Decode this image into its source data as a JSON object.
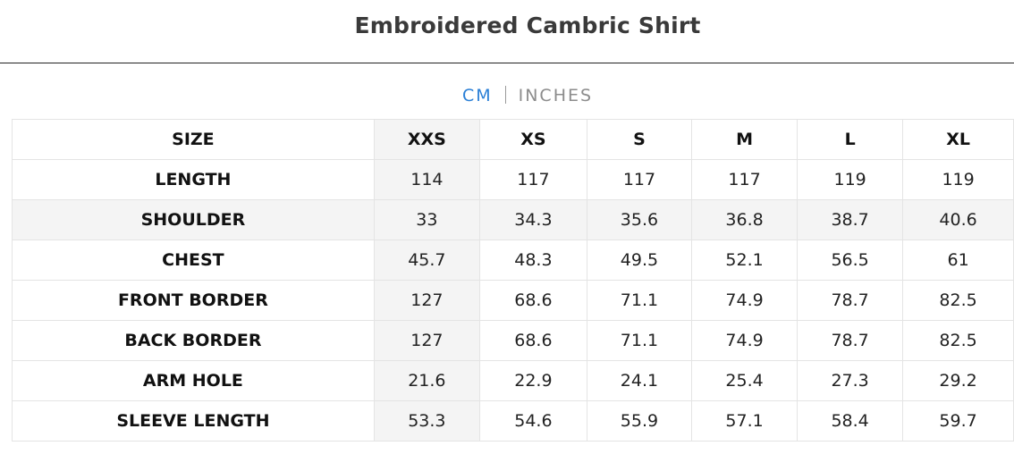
{
  "title": "Embroidered Cambric Shirt",
  "units": {
    "active": "CM",
    "inactive": "INCHES",
    "accent_color": "#2a7fd6",
    "inactive_color": "#8c8c8c"
  },
  "table": {
    "corner_label": "SIZE",
    "sizes": [
      "XXS",
      "XS",
      "S",
      "M",
      "L",
      "XL"
    ],
    "rows": [
      {
        "label": "LENGTH",
        "values": [
          "114",
          "117",
          "117",
          "117",
          "119",
          "119"
        ]
      },
      {
        "label": "SHOULDER",
        "values": [
          "33",
          "34.3",
          "35.6",
          "36.8",
          "38.7",
          "40.6"
        ]
      },
      {
        "label": "CHEST",
        "values": [
          "45.7",
          "48.3",
          "49.5",
          "52.1",
          "56.5",
          "61"
        ]
      },
      {
        "label": "FRONT BORDER",
        "values": [
          "127",
          "68.6",
          "71.1",
          "74.9",
          "78.7",
          "82.5"
        ]
      },
      {
        "label": "BACK BORDER",
        "values": [
          "127",
          "68.6",
          "71.1",
          "74.9",
          "78.7",
          "82.5"
        ]
      },
      {
        "label": "ARM HOLE",
        "values": [
          "21.6",
          "22.9",
          "24.1",
          "25.4",
          "27.3",
          "29.2"
        ]
      },
      {
        "label": "SLEEVE LENGTH",
        "values": [
          "53.3",
          "54.6",
          "55.9",
          "57.1",
          "58.4",
          "59.7"
        ]
      }
    ]
  }
}
